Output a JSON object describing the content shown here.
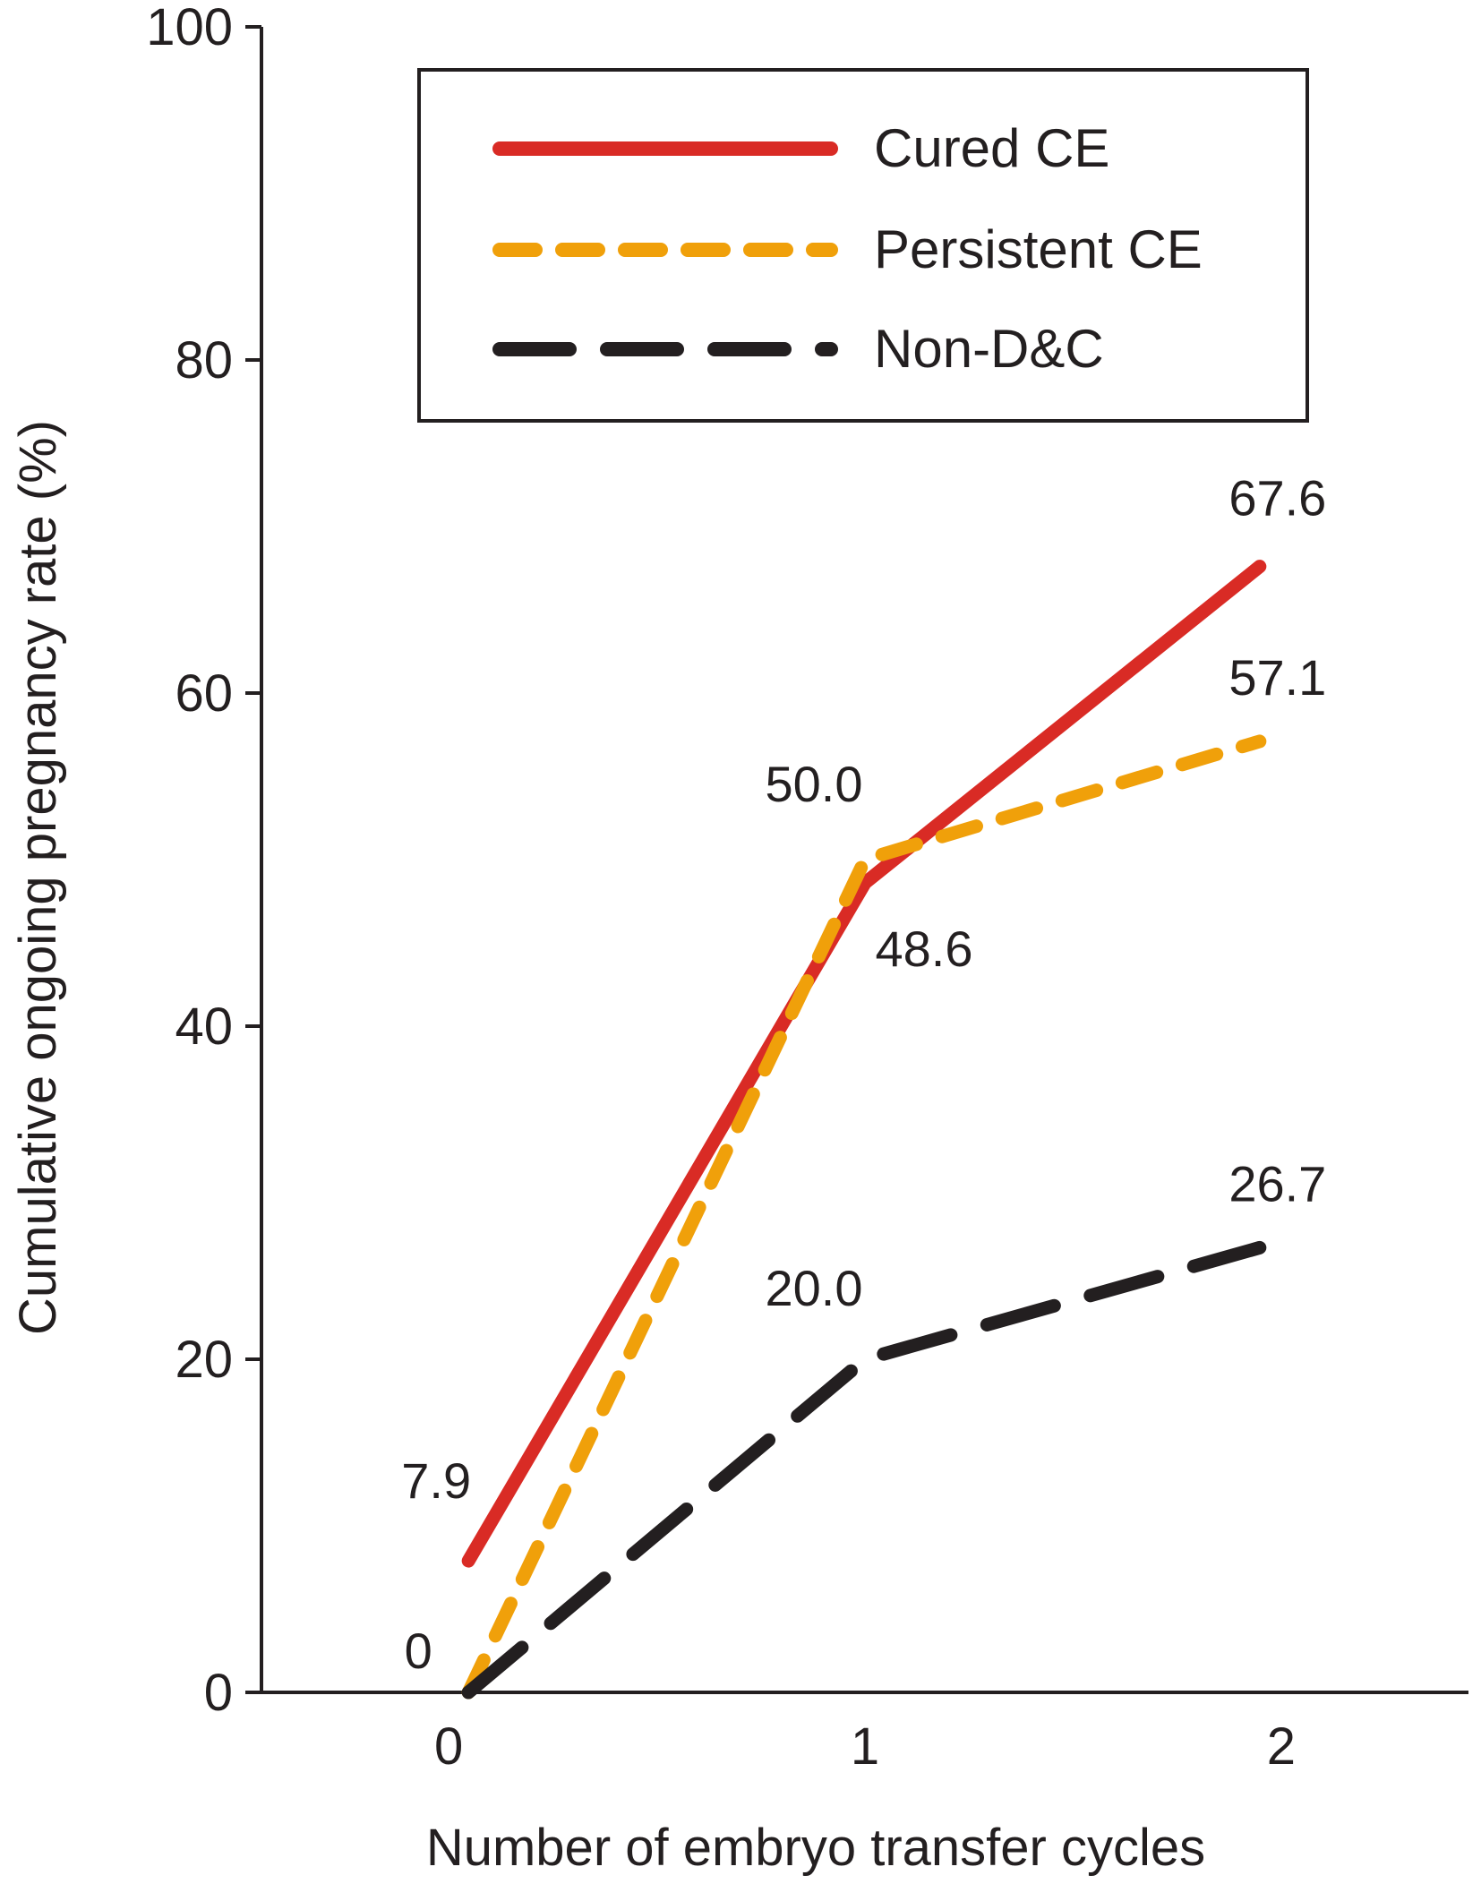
{
  "chart_data": {
    "type": "line",
    "title": "",
    "xlabel": "Number of embryo transfer cycles",
    "ylabel": "Cumulative ongoing pregnancy rate (%)",
    "x": [
      0,
      1,
      2
    ],
    "x_tick_labels": [
      "0",
      "1",
      "2"
    ],
    "xlim": [
      -0.45,
      2.45
    ],
    "ylim": [
      0,
      100
    ],
    "y_ticks": [
      0,
      20,
      40,
      60,
      80,
      100
    ],
    "y_tick_labels": [
      "0",
      "20",
      "40",
      "60",
      "80",
      "100"
    ],
    "grid": false,
    "legend_position": "top-center",
    "series": [
      {
        "name": "Cured CE",
        "style": "solid",
        "color": "#d92b25",
        "values": [
          7.9,
          48.6,
          67.6
        ],
        "data_labels": [
          "7.9",
          "48.6",
          "67.6"
        ]
      },
      {
        "name": "Persistent CE",
        "style": "short-dash",
        "color": "#f0a00a",
        "values": [
          0,
          50.0,
          57.1
        ],
        "data_labels": [
          "0",
          "50.0",
          "57.1"
        ]
      },
      {
        "name": "Non-D&C",
        "style": "long-dash",
        "color": "#231f20",
        "values": [
          0,
          20.0,
          26.7
        ],
        "data_labels": [
          "",
          "20.0",
          "26.7"
        ]
      }
    ]
  }
}
